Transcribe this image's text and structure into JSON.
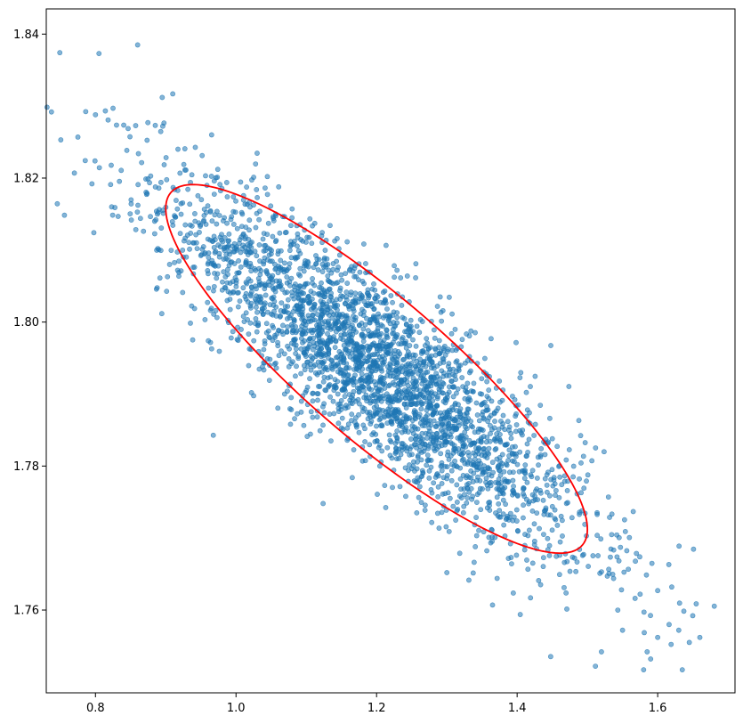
{
  "chart_data": {
    "type": "scatter",
    "title": "",
    "xlabel": "",
    "ylabel": "",
    "xlim": [
      0.73,
      1.71
    ],
    "ylim": [
      1.7485,
      1.8435
    ],
    "xticks": [
      0.8,
      1.0,
      1.2,
      1.4,
      1.6
    ],
    "xtick_labels": [
      "0.8",
      "1.0",
      "1.2",
      "1.4",
      "1.6"
    ],
    "yticks": [
      1.76,
      1.78,
      1.8,
      1.82,
      1.84
    ],
    "ytick_labels": [
      "1.76",
      "1.78",
      "1.80",
      "1.82",
      "1.84"
    ],
    "grid": false,
    "series": [
      {
        "kind": "points",
        "color": "#1f77b4",
        "opacity": 0.55,
        "count": 3000,
        "mean": [
          1.2,
          1.7935
        ],
        "std": [
          0.15,
          0.0128
        ],
        "correlation": -0.87,
        "outliers": [
          [
            0.86,
            1.8385
          ],
          [
            0.805,
            1.8373
          ],
          [
            0.775,
            1.8257
          ],
          [
            0.77,
            1.8207
          ],
          [
            0.795,
            1.8192
          ],
          [
            0.825,
            1.8297
          ],
          [
            0.8,
            1.8288
          ],
          [
            0.91,
            1.8317
          ],
          [
            0.895,
            1.8312
          ],
          [
            1.66,
            1.7562
          ],
          [
            1.645,
            1.7555
          ],
          [
            1.62,
            1.7632
          ],
          [
            1.6,
            1.7627
          ],
          [
            1.63,
            1.7572
          ],
          [
            1.635,
            1.7517
          ],
          [
            1.6,
            1.7562
          ],
          [
            1.58,
            1.7517
          ],
          [
            1.585,
            1.7542
          ],
          [
            1.59,
            1.7532
          ],
          [
            1.52,
            1.7542
          ],
          [
            1.55,
            1.7572
          ],
          [
            1.575,
            1.7622
          ],
          [
            1.365,
            1.7607
          ],
          [
            1.3,
            1.7652
          ]
        ]
      },
      {
        "kind": "ellipse",
        "color": "#ff0000",
        "center": [
          1.2,
          1.7935
        ],
        "std": [
          0.15,
          0.0128
        ],
        "correlation": -0.87,
        "n_std": 2
      }
    ]
  }
}
